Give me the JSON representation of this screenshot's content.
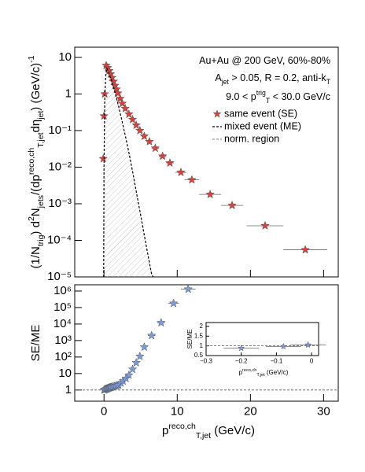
{
  "chart_data": [
    {
      "type": "scatter",
      "ylabel": [
        {
          "text": "(1/N"
        },
        {
          "text": "trig",
          "shift": "sub"
        },
        {
          "text": ") d"
        },
        {
          "text": "2",
          "shift": "super"
        },
        {
          "text": "N"
        },
        {
          "text": "jets",
          "shift": "sub"
        },
        {
          "text": "/(dp"
        },
        {
          "text": "reco,ch",
          "shift": "super"
        },
        {
          "text": "T,jet",
          "shift": "sub"
        },
        {
          "text": "dη"
        },
        {
          "text": "jet",
          "shift": "sub"
        },
        {
          "text": ") (GeV/c)"
        },
        {
          "text": "-1",
          "shift": "super"
        }
      ],
      "annotations": [
        [
          {
            "text": "Au+Au @ 200 GeV, 60%-80%"
          }
        ],
        [
          {
            "text": "A"
          },
          {
            "text": "jet",
            "shift": "sub"
          },
          {
            "text": " > 0.05, R = 0.2, anti-k"
          },
          {
            "text": "T",
            "shift": "sub"
          }
        ],
        [
          {
            "text": "9.0 < p"
          },
          {
            "text": "trig",
            "shift": "super"
          },
          {
            "text": "T",
            "shift": "sub"
          },
          {
            "text": " < 30.0 GeV/c"
          }
        ]
      ],
      "xlim": [
        -4,
        32
      ],
      "xticks": [
        0,
        10,
        20,
        30
      ],
      "log_y": true,
      "ylim": [
        1e-05,
        19
      ],
      "yticks": [
        {
          "value": 10,
          "label": "10"
        },
        1,
        {
          "value": 0.1,
          "label": "10⁻¹"
        },
        {
          "value": 0.01,
          "label": "10⁻²"
        },
        {
          "value": 0.001,
          "label": "10⁻³"
        },
        {
          "value": 0.0001,
          "label": "10⁻⁴"
        },
        {
          "value": 1e-05,
          "label": "10⁻⁵"
        }
      ],
      "legend": "upper right",
      "series": [
        {
          "name": "same event (SE)",
          "color": "#d9413a",
          "marker": "star",
          "x": [
            -0.1,
            0.0,
            0.1,
            0.3,
            0.5,
            0.7,
            0.9,
            1.1,
            1.3,
            1.5,
            1.7,
            1.9,
            2.2,
            2.5,
            2.9,
            3.4,
            3.9,
            4.4,
            4.9,
            5.5,
            6.2,
            7.0,
            8.0,
            9.0,
            10.5,
            12.0,
            14.5,
            17.5,
            22.0,
            27.5
          ],
          "values": [
            0.017,
            0.25,
            1.0,
            6.0,
            5.2,
            4.3,
            3.5,
            2.8,
            2.2,
            1.7,
            1.35,
            1.05,
            0.75,
            0.55,
            0.4,
            0.28,
            0.2,
            0.14,
            0.1,
            0.07,
            0.05,
            0.033,
            0.02,
            0.013,
            0.0072,
            0.0045,
            0.0018,
            0.0009,
            0.00025,
            5.5e-05
          ],
          "xerr": [
            0.05,
            0.05,
            0.05,
            0.1,
            0.1,
            0.1,
            0.1,
            0.1,
            0.1,
            0.1,
            0.1,
            0.1,
            0.15,
            0.15,
            0.2,
            0.25,
            0.25,
            0.25,
            0.25,
            0.3,
            0.4,
            0.5,
            0.5,
            0.5,
            0.75,
            1.0,
            1.5,
            1.5,
            2.5,
            3.0
          ]
        },
        {
          "name": "mixed event (ME)",
          "color": "#000000",
          "line": "dashed",
          "hatch": true,
          "x": [
            -0.05,
            0.0,
            0.1,
            0.25,
            0.4,
            1.0,
            1.5,
            2.0,
            2.5,
            3.0,
            3.5,
            4.0,
            4.5,
            5.0,
            5.5,
            6.0,
            6.5,
            6.7
          ],
          "values": [
            1e-05,
            0.01,
            0.8,
            3.5,
            5.0,
            2.5,
            1.1,
            0.45,
            0.17,
            0.06,
            0.02,
            0.006,
            0.0017,
            0.0005,
            0.00014,
            4e-05,
            1.2e-05,
            1e-05
          ]
        }
      ],
      "norm_region": {
        "name": "norm. region",
        "color": "#999999"
      }
    },
    {
      "type": "scatter",
      "ylabel": [
        {
          "text": "SE/ME"
        }
      ],
      "xlabel": [
        {
          "text": "p"
        },
        {
          "text": "reco,ch",
          "shift": "super"
        },
        {
          "text": "T,jet",
          "shift": "sub"
        },
        {
          "text": "  (GeV/c)"
        }
      ],
      "xlim": [
        -4,
        32
      ],
      "xticks": [
        0,
        10,
        20,
        30
      ],
      "log_y": true,
      "ylim": [
        0.21,
        2400000
      ],
      "yticks": [
        1,
        10,
        {
          "value": 100,
          "label": "10²"
        },
        {
          "value": 1000,
          "label": "10³"
        },
        {
          "value": 10000,
          "label": "10⁴"
        },
        {
          "value": 100000,
          "label": "10⁵"
        },
        {
          "value": 1000000,
          "label": "10⁶"
        }
      ],
      "hline": 1,
      "series": [
        {
          "color": "#7b9be0",
          "marker": "star",
          "x": [
            0.0,
            0.1,
            0.2,
            0.3,
            0.4,
            0.5,
            0.6,
            0.7,
            0.8,
            0.9,
            1.0,
            1.2,
            1.4,
            1.6,
            1.8,
            2.0,
            2.3,
            2.6,
            3.0,
            3.4,
            3.9,
            4.4,
            4.9,
            5.5,
            6.5,
            7.8,
            9.5,
            11.5
          ],
          "values": [
            1.0,
            1.05,
            1.1,
            1.15,
            1.2,
            1.25,
            1.3,
            1.35,
            1.4,
            1.45,
            1.5,
            1.6,
            1.7,
            1.8,
            1.9,
            2.0,
            2.6,
            3.5,
            5,
            8,
            18,
            45,
            110,
            400,
            2000,
            12000,
            180000,
            1300000
          ],
          "xerr": [
            0.05,
            0.05,
            0.05,
            0.05,
            0.05,
            0.05,
            0.05,
            0.05,
            0.05,
            0.05,
            0.05,
            0.1,
            0.1,
            0.1,
            0.1,
            0.1,
            0.15,
            0.15,
            0.2,
            0.2,
            0.25,
            0.25,
            0.25,
            0.3,
            0.5,
            0.5,
            0.75,
            1.0
          ]
        }
      ]
    },
    {
      "type": "scatter",
      "ylabel": [
        {
          "text": "SE/ME"
        }
      ],
      "xlabel": [
        {
          "text": "p"
        },
        {
          "text": "reco,ch",
          "shift": "super"
        },
        {
          "text": "T,jet",
          "shift": "sub"
        },
        {
          "text": " (GeV/c)"
        }
      ],
      "xlim": [
        -0.3,
        0.02
      ],
      "xticks": [
        {
          "value": -0.3,
          "label": "−0.3"
        },
        {
          "value": -0.2,
          "label": "−0.2"
        },
        {
          "value": -0.1,
          "label": "−0.1"
        },
        0
      ],
      "ylim": [
        0.5,
        2.2
      ],
      "yticks": [
        0.5,
        1,
        1.5,
        2
      ],
      "hline": 1,
      "series": [
        {
          "color": "#7b9be0",
          "marker": "star",
          "x": [
            -0.2,
            -0.08,
            -0.01
          ],
          "values": [
            0.88,
            0.97,
            1.05
          ],
          "xerr": [
            0.05,
            0.05,
            0.05
          ]
        }
      ]
    }
  ]
}
